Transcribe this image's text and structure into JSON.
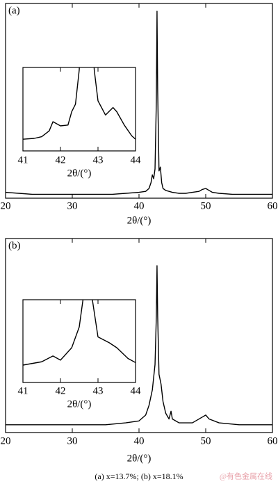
{
  "chart_data": [
    {
      "type": "line",
      "panel_label": "(a)",
      "xlabel": "2θ/(°)",
      "color": "#000000",
      "x": [
        20,
        22,
        24,
        26,
        28,
        30,
        32,
        34,
        36,
        38,
        40,
        41,
        41.5,
        41.8,
        42,
        42.2,
        42.4,
        42.6,
        42.7,
        42.8,
        43,
        43.2,
        43.4,
        43.6,
        44,
        45,
        46,
        47,
        48,
        49,
        49.5,
        50,
        50.5,
        51,
        52,
        54,
        56,
        58,
        60
      ],
      "values": [
        3,
        2.5,
        2,
        2,
        2,
        2,
        2,
        2,
        2,
        2.5,
        3,
        3.5,
        5,
        8,
        12,
        10,
        15,
        50,
        96,
        55,
        14,
        16,
        8,
        5,
        4,
        3,
        2.5,
        2.5,
        3,
        3.5,
        4.5,
        5,
        4,
        3,
        2.5,
        2,
        2,
        2,
        2
      ],
      "xlim": [
        20,
        60
      ],
      "ylim": [
        0,
        100
      ],
      "xticks": [
        20,
        30,
        40,
        50,
        60
      ]
    },
    {
      "type": "line",
      "xlabel": "2θ/(°)",
      "color": "#000000",
      "x": [
        41,
        41.3,
        41.5,
        41.7,
        41.8,
        42,
        42.2,
        42.3,
        42.4,
        42.5,
        42.55,
        42.85,
        42.9,
        43,
        43.2,
        43.4,
        43.5,
        43.7,
        43.9,
        44
      ],
      "values": [
        14,
        15,
        17,
        24,
        35,
        30,
        31,
        47,
        56,
        97,
        150,
        150,
        97,
        60,
        43,
        52,
        47,
        31,
        18,
        14
      ],
      "xlim": [
        41,
        44
      ],
      "ylim": [
        0,
        100
      ],
      "xticks": [
        41,
        42,
        43,
        44
      ]
    },
    {
      "type": "line",
      "panel_label": "(b)",
      "xlabel": "2θ/(°)",
      "color": "#000000",
      "x": [
        20,
        25,
        30,
        35,
        38,
        40,
        41,
        41.5,
        42,
        42.4,
        42.6,
        42.7,
        42.8,
        43,
        43.3,
        43.6,
        44,
        44.5,
        44.8,
        45,
        46,
        48,
        49.5,
        50,
        50.5,
        52,
        55,
        60
      ],
      "values": [
        4,
        4,
        4,
        4,
        5,
        6,
        9,
        14,
        22,
        35,
        60,
        86,
        60,
        30,
        25,
        16,
        10,
        7,
        11,
        7,
        5,
        5,
        8,
        9,
        7,
        5,
        4,
        4
      ],
      "xlim": [
        20,
        60
      ],
      "ylim": [
        0,
        100
      ],
      "xticks": [
        20,
        30,
        40,
        50,
        60
      ]
    },
    {
      "type": "line",
      "xlabel": "2θ/(°)",
      "color": "#000000",
      "x": [
        41,
        41.5,
        41.8,
        42,
        42.3,
        42.5,
        42.6,
        42.65,
        42.8,
        42.85,
        43,
        43.3,
        43.5,
        43.8,
        44
      ],
      "values": [
        21,
        25,
        32,
        27,
        42,
        67,
        100,
        150,
        150,
        100,
        55,
        48,
        42,
        29,
        24
      ],
      "xlim": [
        41,
        44
      ],
      "ylim": [
        0,
        100
      ],
      "xticks": [
        41,
        42,
        43,
        44
      ]
    }
  ],
  "caption": "(a) x=13.7%; (b) x=18.1%",
  "watermark": "@有色金属在线"
}
